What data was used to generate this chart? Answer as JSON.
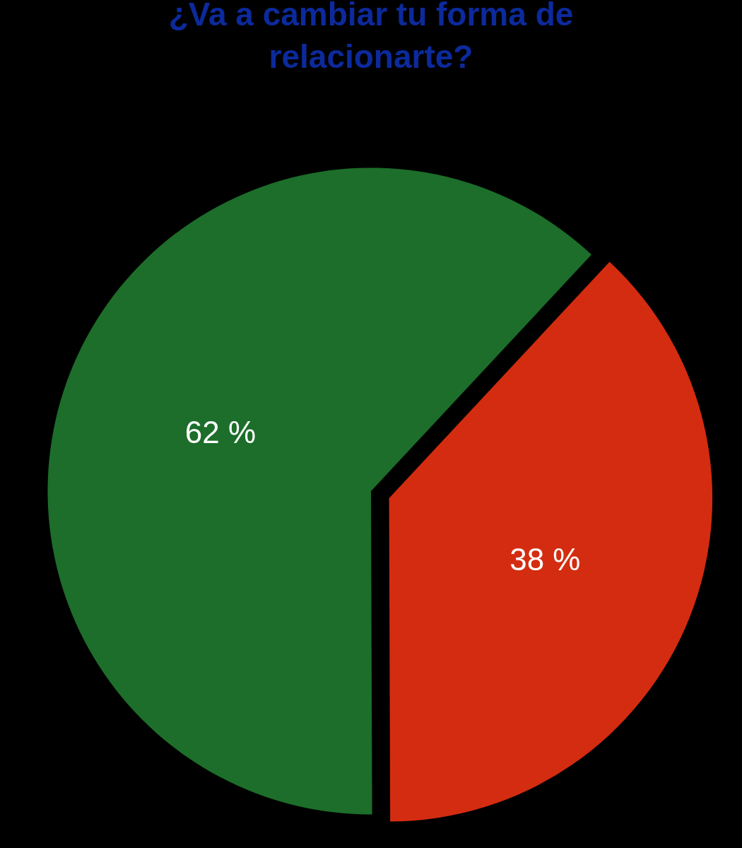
{
  "chart_data": {
    "type": "pie",
    "title": "¿Va a cambiar tu forma de relacionarte?",
    "categories": [
      null,
      null
    ],
    "values": [
      38,
      62
    ],
    "colors": [
      "#d42c10",
      "#1c6e2a"
    ],
    "value_labels": [
      "38 %",
      "62 %"
    ]
  }
}
